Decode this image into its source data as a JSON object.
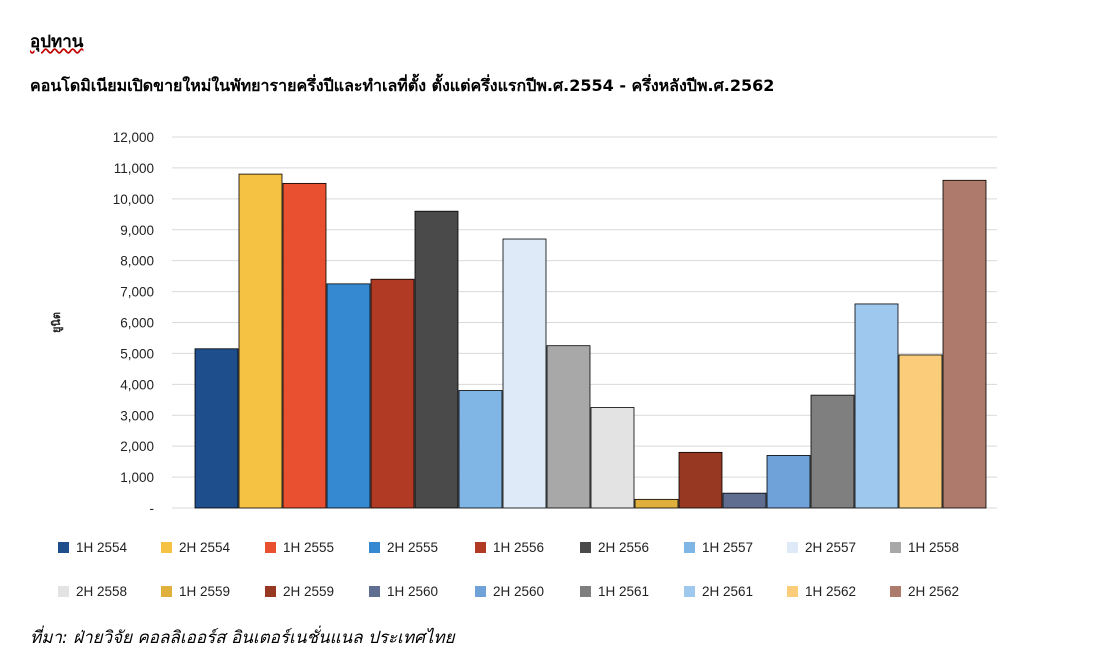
{
  "heading": "อุปทาน",
  "source": "ที่มา: ฝ่ายวิจัย คอลลิเออร์ส อินเตอร์เนชั่นแนล ประเทศไทย",
  "chart_data": {
    "type": "bar",
    "title": "คอนโดมิเนียมเปิดขายใหม่ในพัทยารายครึ่งปีและทำเลที่ตั้ง  ตั้งแต่ครึ่งแรกปีพ.ศ.2554 - ครึ่งหลังปีพ.ศ.2562",
    "ylabel": "ยูนิต",
    "xlabel": "",
    "ylim": [
      0,
      12000
    ],
    "yticks": [
      "-",
      "1,000",
      "2,000",
      "3,000",
      "4,000",
      "5,000",
      "6,000",
      "7,000",
      "8,000",
      "9,000",
      "10,000",
      "11,000",
      "12,000"
    ],
    "grid": true,
    "legend_position": "bottom",
    "series": [
      {
        "name": "1H 2554",
        "value": 5150,
        "color": "#1f4e8c"
      },
      {
        "name": "2H 2554",
        "value": 10800,
        "color": "#f6c244"
      },
      {
        "name": "1H 2555",
        "value": 10500,
        "color": "#e8502f"
      },
      {
        "name": "2H 2555",
        "value": 7250,
        "color": "#3589d0"
      },
      {
        "name": "1H 2556",
        "value": 7400,
        "color": "#b13a24"
      },
      {
        "name": "2H 2556",
        "value": 9600,
        "color": "#4a4a4a"
      },
      {
        "name": "1H 2557",
        "value": 3800,
        "color": "#7fb6e6"
      },
      {
        "name": "2H 2557",
        "value": 8700,
        "color": "#deeaf7"
      },
      {
        "name": "1H 2558",
        "value": 5250,
        "color": "#a8a8a8"
      },
      {
        "name": "2H 2558",
        "value": 3250,
        "color": "#e3e3e3"
      },
      {
        "name": "1H 2559",
        "value": 280,
        "color": "#e0b03c"
      },
      {
        "name": "2H 2559",
        "value": 1800,
        "color": "#973822"
      },
      {
        "name": "1H 2560",
        "value": 480,
        "color": "#5f6d91"
      },
      {
        "name": "2H 2560",
        "value": 1700,
        "color": "#6ea2d8"
      },
      {
        "name": "1H 2561",
        "value": 3650,
        "color": "#7f7f7f"
      },
      {
        "name": "2H 2561",
        "value": 6600,
        "color": "#9fc8ee"
      },
      {
        "name": "1H 2562",
        "value": 4950,
        "color": "#fbcd7a"
      },
      {
        "name": "2H 2562",
        "value": 10600,
        "color": "#ae7a6c"
      }
    ]
  }
}
